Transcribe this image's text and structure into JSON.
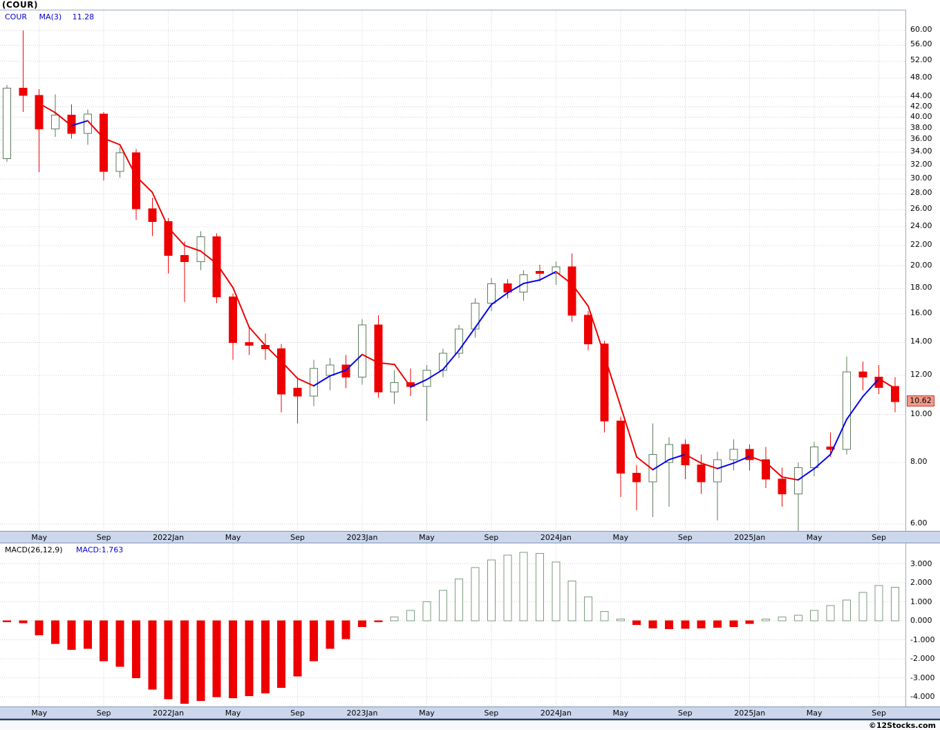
{
  "window": {
    "title": "(COUR)"
  },
  "footer": {
    "watermark": "©12Stocks.com"
  },
  "price_panel": {
    "legend_symbol": "COUR",
    "legend_ma": "MA(3)",
    "legend_ma_value": "11.28",
    "last_price": "10.62",
    "y_ticks": [
      {
        "label": "60.00",
        "value": 60
      },
      {
        "label": "56.00",
        "value": 56
      },
      {
        "label": "52.00",
        "value": 52
      },
      {
        "label": "48.00",
        "value": 48
      },
      {
        "label": "44.00",
        "value": 44
      },
      {
        "label": "42.00",
        "value": 42
      },
      {
        "label": "40.00",
        "value": 40
      },
      {
        "label": "38.00",
        "value": 38
      },
      {
        "label": "36.00",
        "value": 36
      },
      {
        "label": "34.00",
        "value": 34
      },
      {
        "label": "32.00",
        "value": 32
      },
      {
        "label": "30.00",
        "value": 30
      },
      {
        "label": "28.00",
        "value": 28
      },
      {
        "label": "26.00",
        "value": 26
      },
      {
        "label": "24.00",
        "value": 24
      },
      {
        "label": "22.00",
        "value": 22
      },
      {
        "label": "20.00",
        "value": 20
      },
      {
        "label": "18.00",
        "value": 18
      },
      {
        "label": "16.00",
        "value": 16
      },
      {
        "label": "14.00",
        "value": 14
      },
      {
        "label": "12.00",
        "value": 12
      },
      {
        "label": "10.00",
        "value": 10
      },
      {
        "label": "8.00",
        "value": 8
      },
      {
        "label": "6.00",
        "value": 6
      }
    ]
  },
  "macd_panel": {
    "legend": "MACD(26,12,9)",
    "legend_value": "MACD:1.763",
    "y_ticks": [
      {
        "label": "3.000",
        "value": 3
      },
      {
        "label": "2.000",
        "value": 2
      },
      {
        "label": "1.000",
        "value": 1
      },
      {
        "label": "0.000",
        "value": 0
      },
      {
        "label": "-1.000",
        "value": -1
      },
      {
        "label": "-2.000",
        "value": -2
      },
      {
        "label": "-3.000",
        "value": -3
      },
      {
        "label": "-4.000",
        "value": -4
      }
    ]
  },
  "x_axis": {
    "labels": [
      {
        "i": 2,
        "text": "May"
      },
      {
        "i": 6,
        "text": "Sep"
      },
      {
        "i": 10,
        "text": "2022Jan"
      },
      {
        "i": 14,
        "text": "May"
      },
      {
        "i": 18,
        "text": "Sep"
      },
      {
        "i": 22,
        "text": "2023Jan"
      },
      {
        "i": 26,
        "text": "May"
      },
      {
        "i": 30,
        "text": "Sep"
      },
      {
        "i": 34,
        "text": "2024Jan"
      },
      {
        "i": 38,
        "text": "May"
      },
      {
        "i": 42,
        "text": "Sep"
      },
      {
        "i": 46,
        "text": "2025Jan"
      },
      {
        "i": 50,
        "text": "May"
      },
      {
        "i": 54,
        "text": "Sep"
      }
    ]
  },
  "colors": {
    "down": "#ee0000",
    "up_fill": "#ffffff",
    "up_outline": "#5a7a5a",
    "macd_pos_outline": "#7a9a7a",
    "ma_up": "#0000ee",
    "ma_down": "#ee0000",
    "grid": "#cfcfcf",
    "band_bg": "#ccd7ec",
    "tag_bg": "#f2998a",
    "legend_blue": "#0000cc"
  },
  "chart_data": [
    {
      "type": "candlestick",
      "title": "(COUR) monthly price with MA(3)",
      "ylog": true,
      "ylim": [
        5.8,
        62
      ],
      "x": [
        "2021-03",
        "2021-04",
        "2021-05",
        "2021-06",
        "2021-07",
        "2021-08",
        "2021-09",
        "2021-10",
        "2021-11",
        "2021-12",
        "2022-01",
        "2022-02",
        "2022-03",
        "2022-04",
        "2022-05",
        "2022-06",
        "2022-07",
        "2022-08",
        "2022-09",
        "2022-10",
        "2022-11",
        "2022-12",
        "2023-01",
        "2023-02",
        "2023-03",
        "2023-04",
        "2023-05",
        "2023-06",
        "2023-07",
        "2023-08",
        "2023-09",
        "2023-10",
        "2023-11",
        "2023-12",
        "2024-01",
        "2024-02",
        "2024-03",
        "2024-04",
        "2024-05",
        "2024-06",
        "2024-07",
        "2024-08",
        "2024-09",
        "2024-10",
        "2024-11",
        "2024-12",
        "2025-01",
        "2025-02",
        "2025-03",
        "2025-04",
        "2025-05",
        "2025-06",
        "2025-07",
        "2025-08",
        "2025-09",
        "2025-10"
      ],
      "open": [
        33.0,
        45.8,
        44.3,
        37.9,
        40.4,
        37.1,
        40.6,
        31.1,
        33.9,
        26.1,
        24.6,
        21.0,
        20.4,
        22.9,
        17.3,
        14.0,
        13.8,
        13.6,
        11.3,
        10.9,
        12.0,
        12.6,
        11.9,
        15.2,
        11.1,
        11.6,
        11.4,
        12.3,
        13.3,
        14.9,
        16.8,
        18.4,
        17.7,
        19.5,
        19.3,
        19.9,
        15.9,
        13.9,
        9.7,
        7.6,
        7.3,
        8.0,
        8.7,
        7.9,
        7.3,
        8.1,
        8.5,
        8.1,
        7.4,
        6.9,
        7.8,
        8.6,
        8.5,
        12.2,
        11.9,
        11.4
      ],
      "high": [
        46.5,
        60.0,
        45.6,
        44.5,
        42.5,
        41.5,
        41.0,
        34.8,
        34.5,
        27.5,
        25.0,
        22.4,
        23.5,
        23.3,
        17.6,
        15.0,
        14.6,
        13.9,
        11.9,
        12.9,
        13.0,
        13.2,
        15.6,
        15.9,
        12.3,
        12.4,
        12.6,
        13.6,
        15.2,
        17.2,
        18.9,
        18.8,
        19.6,
        20.1,
        20.4,
        21.2,
        16.2,
        14.1,
        9.9,
        7.9,
        9.6,
        9.0,
        8.9,
        8.3,
        8.4,
        8.9,
        8.7,
        8.6,
        7.8,
        8.0,
        8.8,
        9.2,
        13.1,
        12.8,
        12.6,
        11.9
      ],
      "low": [
        32.5,
        41.0,
        31.0,
        36.5,
        36.2,
        35.2,
        29.8,
        30.2,
        24.8,
        23.0,
        19.3,
        16.9,
        19.6,
        16.8,
        12.9,
        13.2,
        12.9,
        10.1,
        9.6,
        10.4,
        11.2,
        11.3,
        11.5,
        10.8,
        10.5,
        10.9,
        9.7,
        11.9,
        13.0,
        14.3,
        16.2,
        17.2,
        17.0,
        18.6,
        18.3,
        15.4,
        13.5,
        9.2,
        6.8,
        6.4,
        6.2,
        6.5,
        7.4,
        6.9,
        6.1,
        7.7,
        7.7,
        7.1,
        6.5,
        5.8,
        7.5,
        8.2,
        8.3,
        11.2,
        11.0,
        10.1
      ],
      "close": [
        45.8,
        44.3,
        37.9,
        40.4,
        37.1,
        40.6,
        31.1,
        33.9,
        26.1,
        24.6,
        21.0,
        20.4,
        22.9,
        17.3,
        14.0,
        13.8,
        13.6,
        11.0,
        10.9,
        12.4,
        12.6,
        11.9,
        15.2,
        11.1,
        11.6,
        11.4,
        12.3,
        13.3,
        14.9,
        16.8,
        18.4,
        17.7,
        19.2,
        19.3,
        19.9,
        15.9,
        13.9,
        9.7,
        7.6,
        7.3,
        8.3,
        8.7,
        7.9,
        7.3,
        8.1,
        8.5,
        8.1,
        7.4,
        6.9,
        7.8,
        8.6,
        8.5,
        12.2,
        11.9,
        11.35,
        10.62
      ],
      "ma3": [
        null,
        null,
        42.67,
        40.87,
        38.47,
        39.37,
        36.27,
        35.2,
        30.37,
        28.2,
        23.9,
        22.0,
        21.43,
        20.2,
        18.07,
        15.03,
        13.8,
        12.8,
        11.83,
        11.43,
        11.97,
        12.3,
        13.23,
        12.73,
        12.63,
        11.37,
        11.77,
        12.33,
        13.5,
        15.0,
        16.7,
        17.63,
        18.43,
        18.73,
        19.47,
        18.37,
        16.57,
        13.17,
        10.4,
        8.2,
        7.73,
        8.1,
        8.3,
        7.97,
        7.77,
        7.97,
        8.23,
        8.0,
        7.47,
        7.37,
        7.77,
        8.3,
        9.77,
        10.87,
        11.82,
        11.29
      ],
      "last": 10.62
    },
    {
      "type": "bar",
      "title": "MACD(26,12,9)",
      "ylim": [
        -4.6,
        3.7
      ],
      "x": [
        "2021-03",
        "2021-04",
        "2021-05",
        "2021-06",
        "2021-07",
        "2021-08",
        "2021-09",
        "2021-10",
        "2021-11",
        "2021-12",
        "2022-01",
        "2022-02",
        "2022-03",
        "2022-04",
        "2022-05",
        "2022-06",
        "2022-07",
        "2022-08",
        "2022-09",
        "2022-10",
        "2022-11",
        "2022-12",
        "2023-01",
        "2023-02",
        "2023-03",
        "2023-04",
        "2023-05",
        "2023-06",
        "2023-07",
        "2023-08",
        "2023-09",
        "2023-10",
        "2023-11",
        "2023-12",
        "2024-01",
        "2024-02",
        "2024-03",
        "2024-04",
        "2024-05",
        "2024-06",
        "2024-07",
        "2024-08",
        "2024-09",
        "2024-10",
        "2024-11",
        "2024-12",
        "2025-01",
        "2025-02",
        "2025-03",
        "2025-04",
        "2025-05",
        "2025-06",
        "2025-07",
        "2025-08",
        "2025-09",
        "2025-10"
      ],
      "values": [
        -0.05,
        -0.1,
        -0.75,
        -1.2,
        -1.5,
        -1.45,
        -2.1,
        -2.4,
        -3.0,
        -3.6,
        -4.1,
        -4.35,
        -4.2,
        -4.0,
        -4.05,
        -3.95,
        -3.8,
        -3.5,
        -2.9,
        -2.1,
        -1.45,
        -0.95,
        -0.3,
        -0.05,
        0.2,
        0.55,
        1.0,
        1.6,
        2.2,
        2.8,
        3.2,
        3.45,
        3.6,
        3.55,
        3.1,
        2.1,
        1.25,
        0.5,
        0.1,
        -0.2,
        -0.38,
        -0.42,
        -0.4,
        -0.38,
        -0.35,
        -0.3,
        -0.15,
        0.1,
        0.2,
        0.3,
        0.55,
        0.8,
        1.1,
        1.5,
        1.85,
        1.763
      ]
    }
  ]
}
